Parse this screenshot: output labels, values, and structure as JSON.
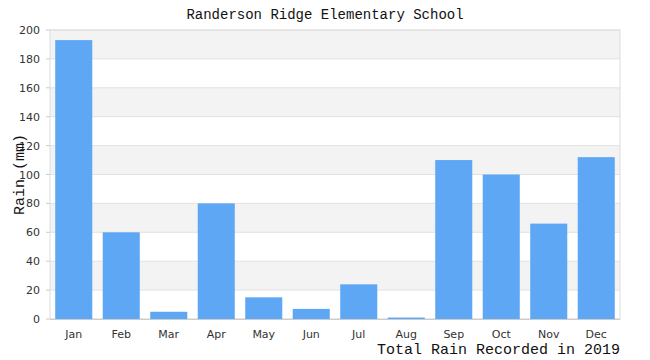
{
  "chart_data": {
    "type": "bar",
    "title": "Randerson Ridge Elementary School",
    "ylabel": "Rain (mm)",
    "xlabel": "Total Rain Recorded in 2019",
    "categories": [
      "Jan",
      "Feb",
      "Mar",
      "Apr",
      "May",
      "Jun",
      "Jul",
      "Aug",
      "Sep",
      "Oct",
      "Nov",
      "Dec"
    ],
    "values": [
      193,
      60,
      5,
      80,
      15,
      7,
      24,
      1,
      110,
      100,
      66,
      112
    ],
    "color": "#5ea7f4",
    "ylim": [
      0,
      200
    ],
    "yticks": [
      0,
      20,
      40,
      60,
      80,
      100,
      120,
      140,
      160,
      180,
      200
    ],
    "grid": true
  }
}
